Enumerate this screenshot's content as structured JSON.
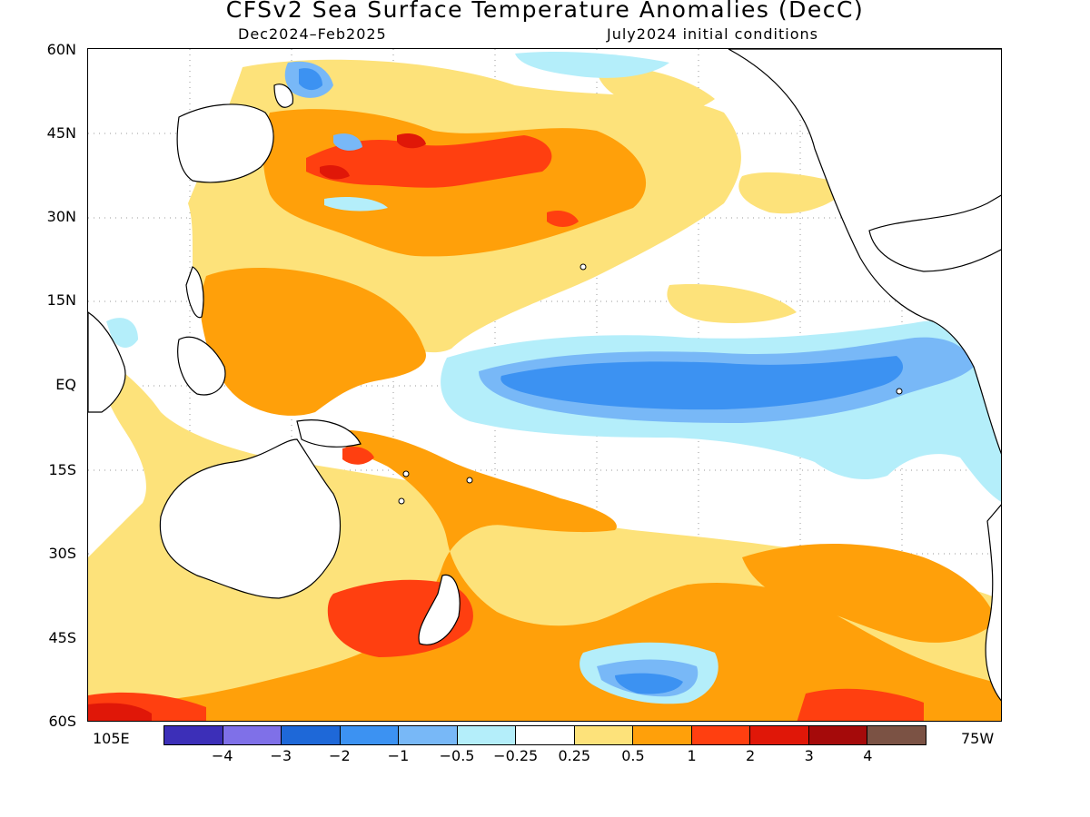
{
  "title": "CFSv2 Sea Surface Temperature Anomalies (DecC)",
  "subtitle_left": "Dec2024–Feb2025",
  "subtitle_right": "July2024 initial conditions",
  "lat_labels": [
    "60N",
    "45N",
    "30N",
    "15N",
    "EQ",
    "15S",
    "30S",
    "45S",
    "60S"
  ],
  "lon_left": "105E",
  "lon_right": "75W",
  "colorbar": {
    "labels": [
      "−4",
      "−3",
      "−2",
      "−1",
      "−0.5",
      "−0.25",
      "0.25",
      "0.5",
      "1",
      "2",
      "3",
      "4"
    ],
    "colors": [
      "#3c2fb8",
      "#7f70e8",
      "#1e68d8",
      "#3c92f2",
      "#78b8f7",
      "#b4eefa",
      "#ffffff",
      "#fde27a",
      "#ffa00a",
      "#ff3f10",
      "#e01708",
      "#a50a0a",
      "#7b5244"
    ]
  }
}
